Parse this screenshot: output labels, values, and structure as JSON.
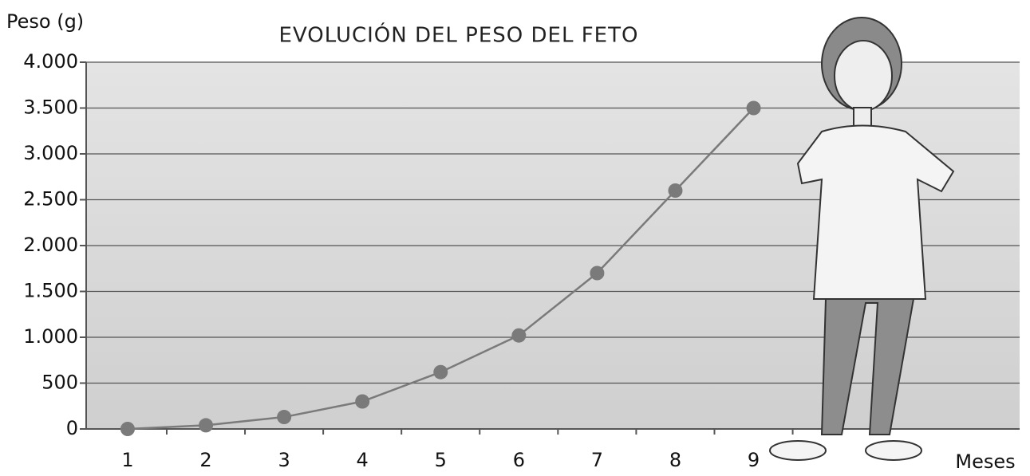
{
  "chart_data": {
    "type": "line",
    "title": "EVOLUCIÓN DEL PESO DEL FETO",
    "y_label": "Peso (g)",
    "x_label": "Meses",
    "x": [
      1,
      2,
      3,
      4,
      5,
      6,
      7,
      8,
      9
    ],
    "series": [
      {
        "color": "#7a7a7a",
        "values": [
          0,
          40,
          130,
          300,
          620,
          1020,
          1700,
          2600,
          3500
        ]
      }
    ],
    "xlim": [
      0.47,
      12.4
    ],
    "xticks": [
      1,
      2,
      3,
      4,
      5,
      6,
      7,
      8,
      9
    ],
    "ylim": [
      0,
      4000
    ],
    "yticks": [
      0,
      500,
      {
        "value": 1000,
        "label": "1.000"
      },
      {
        "value": 1500,
        "label": "1.500"
      },
      {
        "value": 2000,
        "label": "2.000"
      },
      {
        "value": 2500,
        "label": "2.500"
      },
      {
        "value": 3000,
        "label": "3.000"
      },
      {
        "value": 3500,
        "label": "3.500"
      },
      {
        "value": 4000,
        "label": "4.000"
      }
    ],
    "grid": true
  }
}
